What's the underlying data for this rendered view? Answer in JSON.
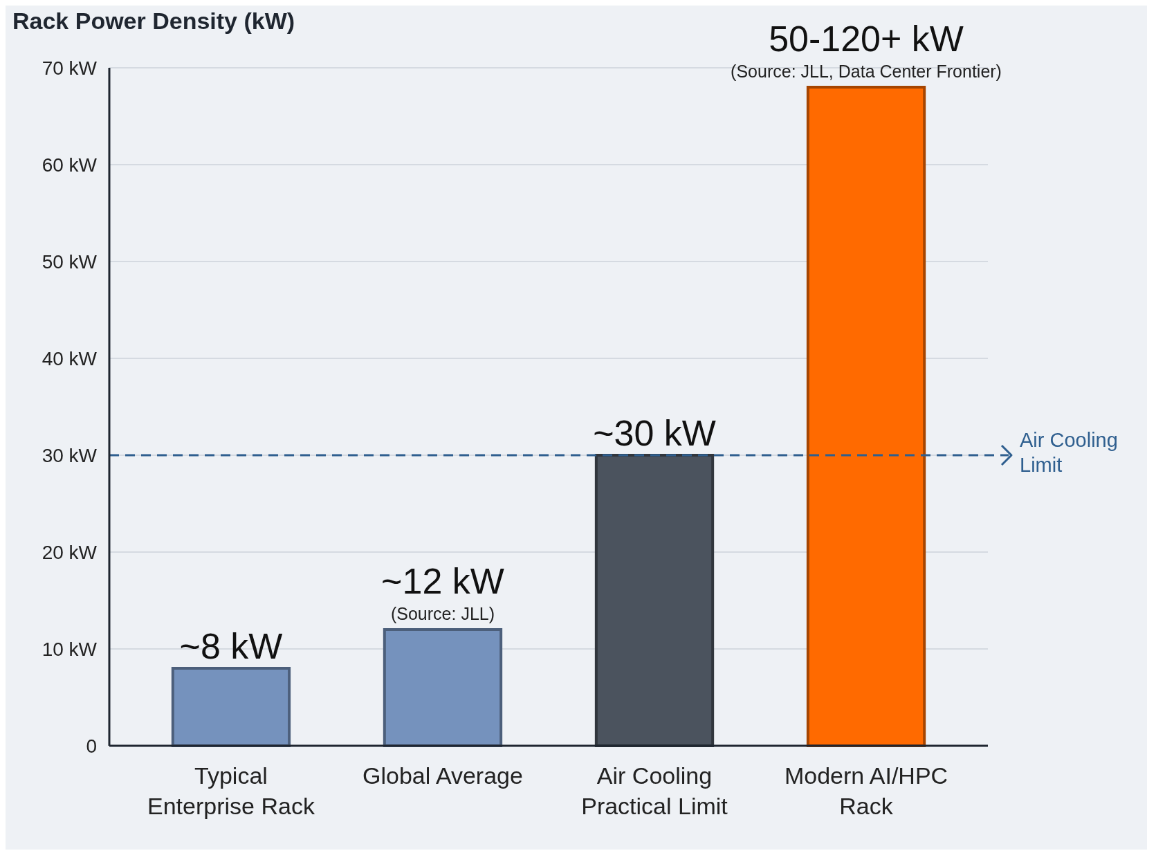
{
  "chart_data": {
    "type": "bar",
    "title": "Rack Power Density (kW)",
    "categories": [
      "Typical Enterprise Rack",
      "Global Average",
      "Air Cooling Practical Limit",
      "Modern AI/HPC Rack"
    ],
    "values": [
      8,
      12,
      30,
      68
    ],
    "colors": [
      "#7592bd",
      "#7592bd",
      "#4b535e",
      "#ff6a00"
    ],
    "value_labels": [
      "~8 kW",
      "~12 kW",
      "~30 kW",
      "50-120+ kW"
    ],
    "annotations": [
      {
        "text": "(Source: JLL)",
        "x": "Global Average",
        "y": 12
      },
      {
        "text": "(Source: JLL, Data Center Frontier)",
        "x": "Modern AI/HPC Rack",
        "y": 68
      }
    ],
    "ylim": [
      0,
      70
    ],
    "yticks": [
      0,
      {
        "value": 10,
        "label": "10 kW"
      },
      {
        "value": 20,
        "label": "20 kW"
      },
      {
        "value": 30,
        "label": "30 kW"
      },
      {
        "value": 40,
        "label": "40 kW"
      },
      {
        "value": 50,
        "label": "50 kW"
      },
      {
        "value": 60,
        "label": "60 kW"
      },
      {
        "value": 70,
        "label": "70 kW"
      }
    ],
    "grid": "y",
    "ref_lines": [
      {
        "axis": "y",
        "value": 30,
        "label": "Air Cooling Limit",
        "color": "#2f5f8f",
        "line_style": "dashed"
      }
    ]
  }
}
